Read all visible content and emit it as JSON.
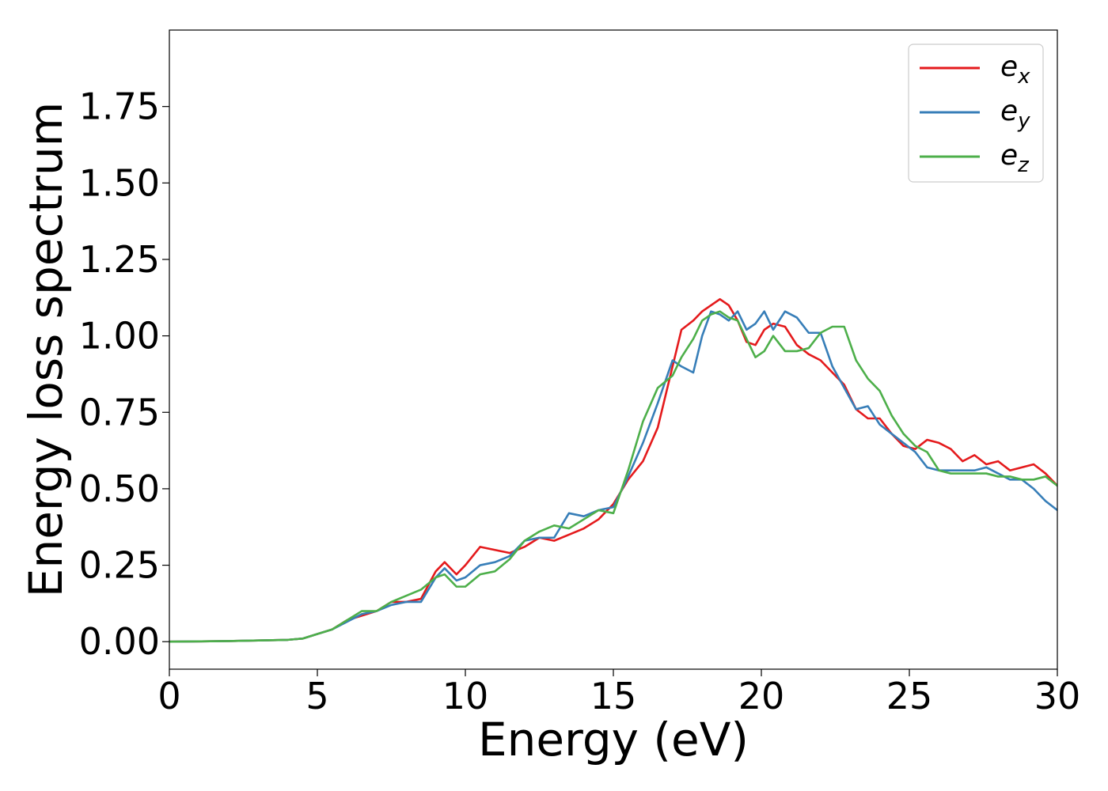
{
  "chart_data": {
    "type": "line",
    "title": "",
    "xlabel": "Energy (eV)",
    "ylabel": "Energy loss spectrum",
    "xlim": [
      0,
      30
    ],
    "ylim": [
      -0.09,
      2.0
    ],
    "xticks": [
      0,
      5,
      10,
      15,
      20,
      25,
      30
    ],
    "xtick_labels": [
      "0",
      "5",
      "10",
      "15",
      "20",
      "25",
      "30"
    ],
    "yticks": [
      0.0,
      0.25,
      0.5,
      0.75,
      1.0,
      1.25,
      1.5,
      1.75
    ],
    "ytick_labels": [
      "0.00",
      "0.25",
      "0.50",
      "0.75",
      "1.00",
      "1.25",
      "1.50",
      "1.75"
    ],
    "grid": false,
    "legend_position": "top-right",
    "series": [
      {
        "name": "e",
        "subscript": "x",
        "color": "#e41a1c",
        "x": [
          0,
          2,
          3,
          4,
          4.5,
          5,
          5.5,
          6,
          6.5,
          7,
          7.5,
          8,
          8.5,
          9,
          9.3,
          9.7,
          10,
          10.5,
          11,
          11.5,
          12,
          12.5,
          13,
          13.5,
          14,
          14.5,
          15,
          15.5,
          16,
          16.5,
          17,
          17.3,
          17.7,
          18,
          18.3,
          18.6,
          18.9,
          19.2,
          19.5,
          19.8,
          20.1,
          20.4,
          20.8,
          21.2,
          21.6,
          22,
          22.4,
          22.8,
          23.2,
          23.6,
          24,
          24.4,
          24.8,
          25.2,
          25.6,
          26,
          26.4,
          26.8,
          27.2,
          27.6,
          28,
          28.4,
          28.8,
          29.2,
          29.6,
          30
        ],
        "y": [
          0,
          0.002,
          0.004,
          0.006,
          0.01,
          0.025,
          0.04,
          0.07,
          0.085,
          0.1,
          0.13,
          0.13,
          0.14,
          0.23,
          0.26,
          0.22,
          0.25,
          0.31,
          0.3,
          0.29,
          0.31,
          0.34,
          0.33,
          0.35,
          0.37,
          0.4,
          0.45,
          0.53,
          0.59,
          0.7,
          0.9,
          1.02,
          1.05,
          1.08,
          1.1,
          1.12,
          1.1,
          1.05,
          0.98,
          0.97,
          1.02,
          1.04,
          1.03,
          0.97,
          0.94,
          0.92,
          0.88,
          0.84,
          0.76,
          0.73,
          0.73,
          0.68,
          0.64,
          0.63,
          0.66,
          0.65,
          0.63,
          0.59,
          0.61,
          0.58,
          0.59,
          0.56,
          0.57,
          0.58,
          0.55,
          0.51
        ]
      },
      {
        "name": "e",
        "subscript": "y",
        "color": "#377eb8",
        "x": [
          0,
          2,
          3,
          4,
          4.5,
          5,
          5.5,
          6,
          6.5,
          7,
          7.5,
          8,
          8.5,
          9,
          9.3,
          9.7,
          10,
          10.5,
          11,
          11.5,
          12,
          12.5,
          13,
          13.5,
          14,
          14.5,
          15,
          15.5,
          16,
          16.5,
          17,
          17.3,
          17.7,
          18,
          18.3,
          18.6,
          18.9,
          19.2,
          19.5,
          19.8,
          20.1,
          20.4,
          20.8,
          21.2,
          21.6,
          22,
          22.4,
          22.8,
          23.2,
          23.6,
          24,
          24.4,
          24.8,
          25.2,
          25.6,
          26,
          26.4,
          26.8,
          27.2,
          27.6,
          28,
          28.4,
          28.8,
          29.2,
          29.6,
          30
        ],
        "y": [
          0,
          0.002,
          0.004,
          0.006,
          0.01,
          0.025,
          0.04,
          0.065,
          0.09,
          0.1,
          0.12,
          0.13,
          0.13,
          0.21,
          0.24,
          0.2,
          0.21,
          0.25,
          0.26,
          0.28,
          0.33,
          0.34,
          0.34,
          0.42,
          0.41,
          0.43,
          0.44,
          0.54,
          0.65,
          0.78,
          0.92,
          0.9,
          0.88,
          1.0,
          1.08,
          1.07,
          1.05,
          1.08,
          1.02,
          1.04,
          1.08,
          1.02,
          1.08,
          1.06,
          1.01,
          1.01,
          0.9,
          0.83,
          0.76,
          0.77,
          0.71,
          0.68,
          0.65,
          0.62,
          0.57,
          0.56,
          0.56,
          0.56,
          0.56,
          0.57,
          0.55,
          0.53,
          0.53,
          0.5,
          0.46,
          0.43
        ]
      },
      {
        "name": "e",
        "subscript": "z",
        "color": "#4daf4a",
        "x": [
          0,
          2,
          3,
          4,
          4.5,
          5,
          5.5,
          6,
          6.5,
          7,
          7.5,
          8,
          8.5,
          9,
          9.3,
          9.7,
          10,
          10.5,
          11,
          11.5,
          12,
          12.5,
          13,
          13.5,
          14,
          14.5,
          15,
          15.5,
          16,
          16.5,
          17,
          17.3,
          17.7,
          18,
          18.3,
          18.6,
          18.9,
          19.2,
          19.5,
          19.8,
          20.1,
          20.4,
          20.8,
          21.2,
          21.6,
          22,
          22.4,
          22.8,
          23.2,
          23.6,
          24,
          24.4,
          24.8,
          25.2,
          25.6,
          26,
          26.4,
          26.8,
          27.2,
          27.6,
          28,
          28.4,
          28.8,
          29.2,
          29.6,
          30
        ],
        "y": [
          0,
          0.002,
          0.004,
          0.006,
          0.01,
          0.025,
          0.04,
          0.07,
          0.1,
          0.1,
          0.13,
          0.15,
          0.17,
          0.21,
          0.22,
          0.18,
          0.18,
          0.22,
          0.23,
          0.27,
          0.33,
          0.36,
          0.38,
          0.37,
          0.4,
          0.43,
          0.42,
          0.56,
          0.72,
          0.83,
          0.87,
          0.93,
          0.99,
          1.05,
          1.07,
          1.08,
          1.06,
          1.05,
          0.99,
          0.93,
          0.95,
          1.0,
          0.95,
          0.95,
          0.96,
          1.01,
          1.03,
          1.03,
          0.92,
          0.86,
          0.82,
          0.74,
          0.68,
          0.64,
          0.62,
          0.56,
          0.55,
          0.55,
          0.55,
          0.55,
          0.54,
          0.54,
          0.53,
          0.53,
          0.54,
          0.51
        ]
      }
    ]
  }
}
